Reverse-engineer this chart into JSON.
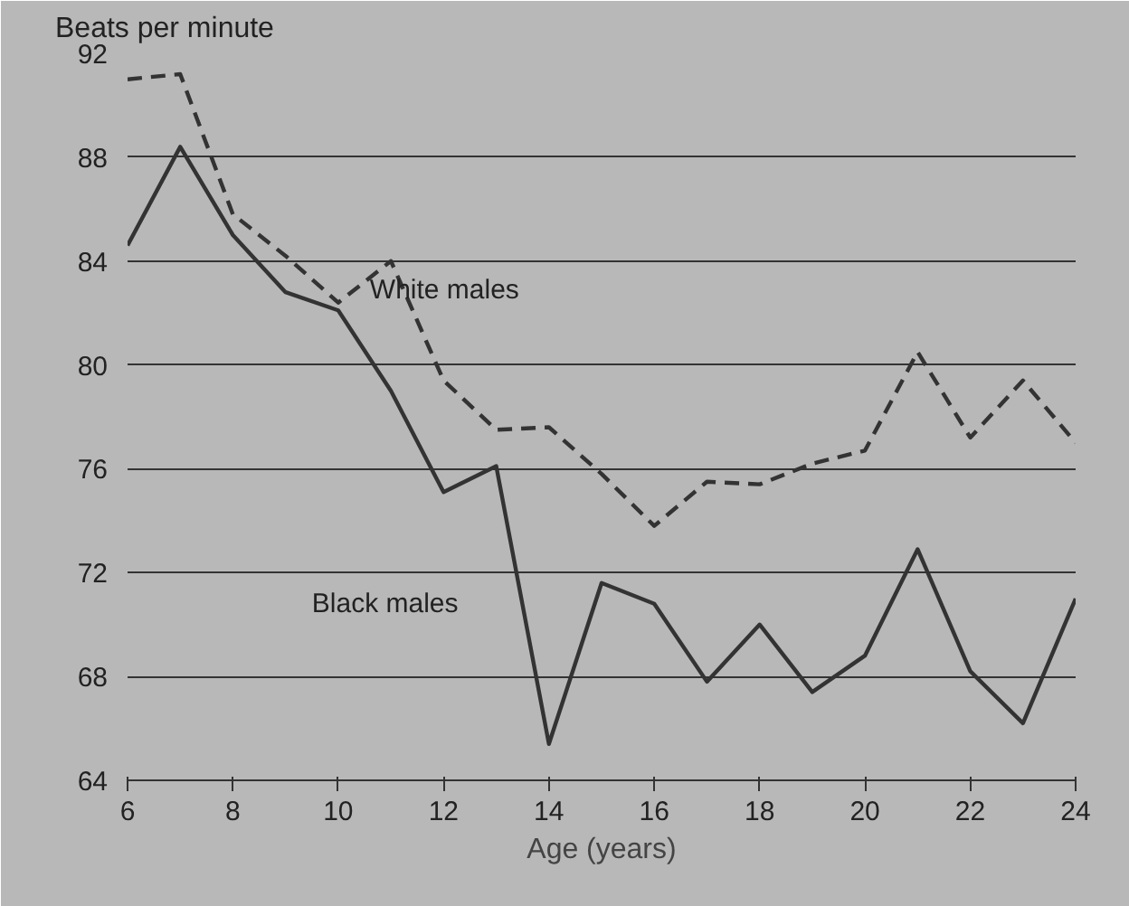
{
  "chart_data": {
    "type": "line",
    "ylabel": "Beats per minute",
    "xlabel": "Age (years)",
    "x": [
      6,
      7,
      8,
      9,
      10,
      11,
      12,
      13,
      14,
      15,
      16,
      17,
      18,
      19,
      20,
      21,
      22,
      23,
      24
    ],
    "series": [
      {
        "name": "White males",
        "color": "#333333",
        "line_style": "dashed",
        "values": [
          91,
          91.2,
          85.8,
          84.2,
          82.4,
          84,
          79.4,
          77.5,
          77.6,
          75.8,
          73.8,
          75.5,
          75.4,
          76.2,
          76.7,
          80.5,
          77.2,
          79.4,
          77
        ]
      },
      {
        "name": "Black males",
        "color": "#333333",
        "line_style": "solid",
        "values": [
          84.6,
          88.4,
          85,
          82.8,
          82.1,
          79,
          75.1,
          76.1,
          65.4,
          71.6,
          70.8,
          67.8,
          70,
          67.4,
          68.8,
          72.9,
          68.2,
          66.2,
          71
        ]
      }
    ],
    "xlim": [
      6,
      24
    ],
    "xticks": [
      6,
      8,
      10,
      12,
      14,
      16,
      18,
      20,
      22,
      24
    ],
    "ylim": [
      64,
      92
    ],
    "yticks": [
      64,
      68,
      72,
      76,
      80,
      84,
      88,
      92
    ],
    "grid": "y",
    "marker": "none"
  }
}
